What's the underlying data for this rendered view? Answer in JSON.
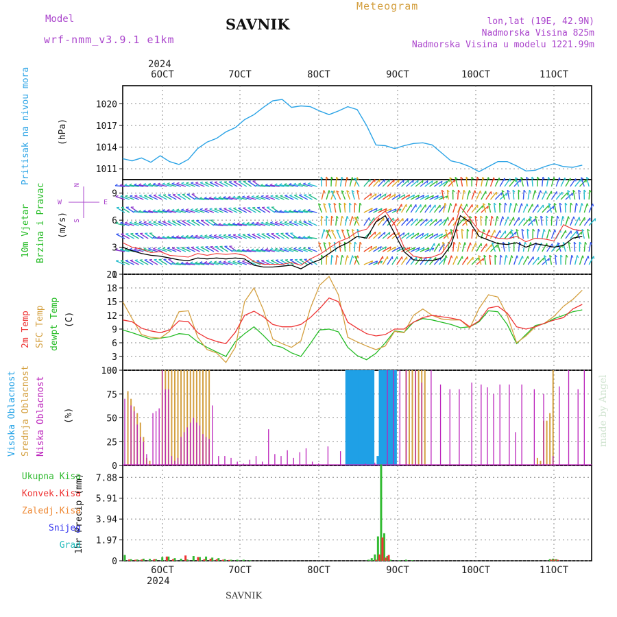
{
  "header": {
    "model_label": "Model",
    "model_name": "wrf-nmm_v3.9.1 e1km",
    "station": "SAVNIK",
    "chart_kind": "Meteogram",
    "lonlat": "lon,lat (19E, 42.9N)",
    "elevation": "Nadmorska Visina 825m",
    "model_elevation": "Nadmorska Visina u modelu 1221.99m",
    "watermark": "made by Angel",
    "footer_station": "SAVNIK",
    "year": "2024"
  },
  "colors": {
    "pressure": "#2aa3e6",
    "wind_label": "#22bb22",
    "temp2m": "#ee3333",
    "sfc": "#d4a040",
    "dewpt": "#22bb22",
    "high_cloud": "#1fa0e6",
    "mid_cloud": "#d4a040",
    "low_cloud": "#bb22bb",
    "total_precip": "#33bb33",
    "conv_precip": "#ee3333",
    "frozen": "#ee8833",
    "snow": "#3333ee",
    "grad": "#22bbbb",
    "header_purple": "#aa44cc"
  },
  "time_axis": {
    "labels": [
      "6OCT",
      "7OCT",
      "8OCT",
      "9OCT",
      "10OCT",
      "11OCT"
    ],
    "start_label": "2024"
  },
  "panels": {
    "pressure": {
      "label1": "Pritisak na nivou mora",
      "unit": "(hPa)"
    },
    "wind": {
      "label1": "10m Vjetar",
      "label2": "Brzina i Pravac",
      "unit": "(m/s)",
      "compass": [
        "N",
        "S",
        "W",
        "E"
      ]
    },
    "temp": {
      "label1": "2m Temp",
      "label2": "SFC Temp",
      "label3": "dewpt Temp",
      "unit": "(C)"
    },
    "cloud": {
      "label1": "Visoka Oblacnost",
      "label2": "Srednja Oblacnost",
      "label3": "Niska Oblacnost",
      "unit": "(%)"
    },
    "precip": {
      "unit": "1hr Precip (mm)",
      "legend": [
        "Ukupna Kisa",
        "Konvek.Kisa",
        "Zaledj.Kisa",
        "Snijeg",
        "Grad"
      ]
    }
  },
  "chart_data": [
    {
      "type": "line",
      "name": "pressure",
      "ylim": [
        1009.5,
        1022.5
      ],
      "yticks": [
        1011,
        1014,
        1017,
        1020
      ],
      "x": [
        0,
        3,
        6,
        9,
        12,
        15,
        18,
        21,
        24,
        27,
        30,
        33,
        36,
        39,
        42,
        45,
        48,
        51,
        54,
        57,
        60,
        63,
        66,
        69,
        72,
        75,
        78,
        81,
        84,
        87,
        90,
        93,
        96,
        99,
        102,
        105,
        108,
        111,
        114,
        117,
        120,
        123,
        126,
        129,
        132,
        135,
        138,
        141,
        144,
        147
      ],
      "series": [
        {
          "values": [
            1012.4,
            1012.1,
            1012.5,
            1011.9,
            1012.8,
            1012.0,
            1011.6,
            1012.3,
            1013.8,
            1014.7,
            1015.2,
            1016.1,
            1016.7,
            1017.8,
            1018.5,
            1019.5,
            1020.4,
            1020.6,
            1019.5,
            1019.7,
            1019.6,
            1019.0,
            1018.5,
            1019.0,
            1019.6,
            1019.2,
            1017.0,
            1014.3,
            1014.2,
            1013.8,
            1014.2,
            1014.5,
            1014.6,
            1014.3,
            1013.2,
            1012.1,
            1011.8,
            1011.3,
            1010.6,
            1011.3,
            1012.0,
            1012.0,
            1011.4,
            1010.7,
            1010.8,
            1011.3,
            1011.7,
            1011.3,
            1011.2,
            1011.5
          ]
        }
      ]
    },
    {
      "type": "line",
      "name": "wind",
      "ylim": [
        0,
        10.5
      ],
      "yticks": [
        0,
        3,
        6,
        9
      ],
      "x": [
        0,
        3,
        6,
        9,
        12,
        15,
        18,
        21,
        24,
        27,
        30,
        33,
        36,
        39,
        42,
        45,
        48,
        51,
        54,
        57,
        60,
        63,
        66,
        69,
        72,
        75,
        78,
        81,
        84,
        87,
        90,
        93,
        96,
        99,
        102,
        105,
        108,
        111,
        114,
        117,
        120,
        123,
        126,
        129,
        132,
        135,
        138,
        141,
        144,
        147
      ],
      "series": [
        {
          "values": [
            3.0,
            2.6,
            2.3,
            2.1,
            2.0,
            1.8,
            1.6,
            1.5,
            1.8,
            1.7,
            1.8,
            1.7,
            1.8,
            1.7,
            1.0,
            0.8,
            0.8,
            0.9,
            1.0,
            0.6,
            1.2,
            1.6,
            2.3,
            3.0,
            3.5,
            4.2,
            4.0,
            5.8,
            6.5,
            4.5,
            2.5,
            1.6,
            1.5,
            1.5,
            1.8,
            3.2,
            6.5,
            5.8,
            4.2,
            3.8,
            3.4,
            3.3,
            3.5,
            3.0,
            3.4,
            3.2,
            3.0,
            3.2,
            4.0,
            4.2
          ]
        },
        {
          "values": [
            3.5,
            3.0,
            2.8,
            2.4,
            2.5,
            2.1,
            2.0,
            1.9,
            2.3,
            2.1,
            2.3,
            2.2,
            2.3,
            2.1,
            1.4,
            1.1,
            1.1,
            1.1,
            1.3,
            1.0,
            1.7,
            2.2,
            2.9,
            3.6,
            4.0,
            4.7,
            5.0,
            6.2,
            7.0,
            5.5,
            3.0,
            2.0,
            1.8,
            1.9,
            2.3,
            3.8,
            7.5,
            6.2,
            4.8,
            4.3,
            4.0,
            3.9,
            4.2,
            3.6,
            4.0,
            3.9,
            3.7,
            5.5,
            5.0,
            4.8
          ]
        }
      ]
    },
    {
      "type": "line",
      "name": "temperature",
      "ylim": [
        0,
        21
      ],
      "yticks": [
        0,
        3,
        6,
        9,
        12,
        15,
        18,
        21
      ],
      "x": [
        0,
        3,
        6,
        9,
        12,
        15,
        18,
        21,
        24,
        27,
        30,
        33,
        36,
        39,
        42,
        45,
        48,
        51,
        54,
        57,
        60,
        63,
        66,
        69,
        72,
        75,
        78,
        81,
        84,
        87,
        90,
        93,
        96,
        99,
        102,
        105,
        108,
        111,
        114,
        117,
        120,
        123,
        126,
        129,
        132,
        135,
        138,
        141,
        144,
        147
      ],
      "series": [
        {
          "values": [
            11.0,
            10.6,
            9.2,
            8.6,
            8.2,
            8.8,
            10.8,
            10.6,
            8.2,
            7.0,
            6.3,
            5.8,
            8.3,
            12.0,
            12.9,
            11.7,
            10.0,
            9.5,
            9.5,
            10.0,
            11.5,
            13.5,
            15.8,
            15.0,
            10.5,
            9.2,
            8.0,
            7.5,
            7.8,
            9.0,
            9.0,
            10.5,
            11.5,
            12.0,
            11.7,
            11.4,
            11.0,
            9.5,
            10.8,
            13.6,
            14.0,
            12.5,
            9.5,
            9.0,
            9.5,
            10.3,
            11.0,
            11.5,
            13.4,
            14.4
          ]
        },
        {
          "values": [
            15.0,
            11.3,
            7.8,
            7.2,
            7.0,
            8.5,
            12.8,
            13.0,
            7.2,
            4.5,
            3.8,
            1.7,
            5.0,
            15.0,
            18.0,
            13.2,
            6.8,
            5.8,
            5.0,
            6.4,
            13.5,
            18.6,
            20.5,
            16.5,
            7.2,
            6.2,
            5.3,
            4.5,
            5.3,
            8.5,
            8.2,
            12.0,
            13.4,
            12.0,
            11.2,
            11.0,
            11.0,
            9.2,
            13.5,
            16.5,
            16.0,
            12.0,
            6.0,
            7.5,
            9.5,
            10.3,
            11.8,
            14.0,
            15.5,
            17.5
          ]
        },
        {
          "values": [
            8.8,
            8.2,
            7.5,
            6.8,
            7.0,
            7.3,
            8.0,
            7.8,
            6.2,
            5.0,
            4.0,
            3.0,
            6.2,
            8.0,
            9.5,
            7.6,
            5.5,
            5.0,
            3.8,
            3.0,
            5.8,
            8.8,
            9.0,
            8.4,
            5.0,
            3.2,
            2.3,
            3.7,
            6.0,
            8.6,
            8.3,
            10.5,
            11.3,
            11.0,
            10.5,
            10.0,
            9.3,
            9.5,
            10.6,
            13.0,
            12.8,
            10.0,
            5.8,
            7.8,
            9.8,
            10.2,
            11.3,
            12.0,
            12.8,
            13.2
          ]
        }
      ]
    },
    {
      "type": "bar",
      "name": "cloud_cover",
      "ylim": [
        0,
        100
      ],
      "yticks": [
        0,
        25,
        50,
        75,
        100
      ],
      "series": [
        {
          "name": "high",
          "x": [
            71,
            71.7,
            72.4,
            73.1,
            73.8,
            74.5,
            75.2,
            75.9,
            76.6,
            77.3,
            78,
            78.7,
            79.4,
            81,
            81.7,
            82.4,
            83.1,
            83.8,
            84.5,
            85.2,
            85.9,
            86.6
          ],
          "values": [
            100,
            100,
            100,
            100,
            100,
            100,
            100,
            100,
            100,
            100,
            100,
            100,
            100,
            10,
            100,
            100,
            100,
            100,
            100,
            100,
            100,
            100
          ]
        },
        {
          "name": "mid",
          "x": [
            1,
            2,
            3,
            4,
            5,
            6,
            7,
            8,
            12,
            13,
            14,
            15,
            16,
            17,
            18,
            19,
            20,
            21,
            22,
            23,
            24,
            25,
            26,
            27,
            90,
            91,
            92,
            93,
            94,
            95,
            96,
            132,
            133,
            134,
            135,
            136,
            137
          ],
          "values": [
            78,
            70,
            62,
            55,
            45,
            30,
            8,
            5,
            100,
            100,
            100,
            100,
            100,
            100,
            100,
            100,
            100,
            100,
            100,
            100,
            100,
            100,
            100,
            100,
            100,
            100,
            100,
            100,
            100,
            100,
            100,
            8,
            5,
            47,
            47,
            55,
            100
          ]
        },
        {
          "name": "low",
          "x": [
            0,
            2,
            3,
            4,
            5,
            6,
            7,
            9,
            10,
            11,
            12,
            13,
            14,
            15,
            16,
            17,
            18,
            19,
            20,
            21,
            22,
            23,
            24,
            25,
            26,
            27,
            28,
            30,
            32,
            34,
            36,
            38,
            40,
            42,
            44,
            46,
            48,
            50,
            52,
            54,
            56,
            58,
            60,
            62,
            65,
            69,
            77,
            80,
            84,
            86,
            88,
            90,
            93,
            95,
            98,
            101,
            104,
            107,
            111,
            114,
            116,
            118,
            120,
            123,
            125,
            127,
            131,
            134,
            137,
            139,
            142,
            145,
            147
          ],
          "values": [
            70,
            63,
            57,
            43,
            30,
            25,
            12,
            55,
            57,
            60,
            100,
            80,
            80,
            10,
            5,
            8,
            30,
            35,
            40,
            45,
            50,
            45,
            42,
            33,
            30,
            28,
            63,
            10,
            10,
            8,
            4,
            2,
            6,
            10,
            4,
            38,
            12,
            10,
            16,
            8,
            14,
            18,
            4,
            2,
            20,
            15,
            2,
            3,
            100,
            100,
            100,
            100,
            100,
            87,
            100,
            85,
            80,
            80,
            87,
            85,
            82,
            75,
            85,
            85,
            35,
            85,
            80,
            75,
            10,
            83,
            100,
            80,
            100
          ]
        }
      ]
    },
    {
      "type": "bar",
      "name": "precipitation",
      "ylim": [
        0,
        9.0
      ],
      "yticks": [
        0,
        1.97,
        3.94,
        5.91,
        7.88
      ],
      "series": [
        {
          "name": "total",
          "x": [
            0,
            2,
            4,
            6,
            8,
            10,
            12,
            14,
            16,
            18,
            20,
            22,
            24,
            26,
            28,
            30,
            32,
            34,
            36,
            38,
            40,
            78,
            79,
            80,
            81,
            82,
            83,
            84,
            85,
            88,
            90,
            92,
            136,
            137,
            138
          ],
          "values": [
            0.55,
            0.15,
            0.12,
            0.2,
            0.18,
            0.15,
            0.35,
            0.4,
            0.25,
            0.2,
            0.12,
            0.45,
            0.35,
            0.4,
            0.3,
            0.25,
            0.15,
            0.1,
            0.1,
            0.1,
            0.05,
            0.1,
            0.25,
            0.6,
            2.3,
            9.1,
            2.6,
            0.45,
            0.1,
            0.05,
            0.1,
            0.05,
            0.15,
            0.2,
            0.15
          ]
        },
        {
          "name": "convective",
          "x": [
            1,
            3,
            5,
            9,
            13,
            15,
            19,
            23,
            25,
            27,
            29,
            31,
            33,
            80,
            81,
            82,
            83,
            84,
            136,
            137,
            138
          ],
          "values": [
            0.12,
            0.1,
            0.12,
            0.15,
            0.4,
            0.15,
            0.5,
            0.35,
            0.15,
            0.2,
            0.15,
            0.1,
            0.08,
            0.1,
            0.6,
            2.2,
            0.3,
            0.55,
            0.1,
            0.12,
            0.1
          ]
        }
      ]
    }
  ]
}
